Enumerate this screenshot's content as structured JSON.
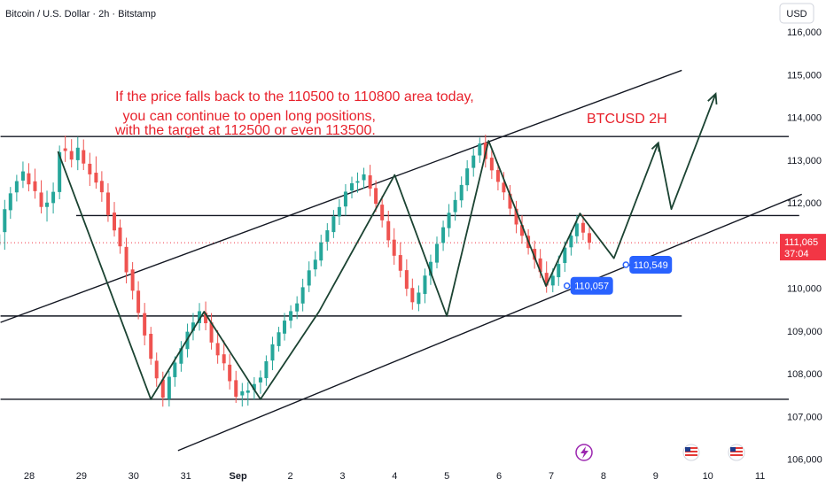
{
  "header": {
    "title": "Bitcoin / U.S. Dollar · 2h · Bitstamp",
    "currency_button": "USD"
  },
  "colors": {
    "up": "#26a69a",
    "down": "#ef5350",
    "annotation": "#e8212b",
    "tag_blue": "#2962ff",
    "last_price": "#f23645",
    "lines": "#131722"
  },
  "icons": [
    "lightning-icon",
    "us-flag-icon",
    "us-flag-icon"
  ],
  "chart_data": {
    "type": "candlestick",
    "title": "Bitcoin / U.S. Dollar · 2h · Bitstamp",
    "y_range": [
      105800,
      116400
    ],
    "y_ticks": [
      {
        "label": "116,000",
        "value": 116000
      },
      {
        "label": "115,000",
        "value": 115000
      },
      {
        "label": "114,000",
        "value": 114000
      },
      {
        "label": "113,000",
        "value": 113000
      },
      {
        "label": "112,000",
        "value": 112000
      },
      {
        "label": "110,000",
        "value": 110000
      },
      {
        "label": "109,000",
        "value": 109000
      },
      {
        "label": "108,000",
        "value": 108000
      },
      {
        "label": "107,000",
        "value": 107000
      },
      {
        "label": "106,000",
        "value": 106000
      }
    ],
    "x_ticks": [
      {
        "label": "28",
        "day": 28
      },
      {
        "label": "29",
        "day": 29
      },
      {
        "label": "30",
        "day": 30
      },
      {
        "label": "31",
        "day": 31
      },
      {
        "label": "Sep",
        "day": 32,
        "bold": true
      },
      {
        "label": "2",
        "day": 33
      },
      {
        "label": "3",
        "day": 34
      },
      {
        "label": "4",
        "day": 35
      },
      {
        "label": "5",
        "day": 36
      },
      {
        "label": "6",
        "day": 37
      },
      {
        "label": "7",
        "day": 38
      },
      {
        "label": "8",
        "day": 39
      },
      {
        "label": "9",
        "day": 40
      },
      {
        "label": "10",
        "day": 41
      },
      {
        "label": "11",
        "day": 42
      }
    ],
    "current_price": {
      "label": "111,065",
      "value": 111065,
      "countdown": "37:04"
    },
    "price_tags": [
      {
        "label": "110,057",
        "day": 38.3,
        "value": 110057
      },
      {
        "label": "110,549",
        "day": 39.43,
        "value": 110549
      }
    ],
    "annotation_lines": [
      "If the price falls back to the 110500 to 110800 area today,",
      " you can continue to open long positions,",
      "with the target at 112500 or even 113500."
    ],
    "label": "BTCUSD 2H",
    "horizontal_levels": [
      {
        "value": 113550,
        "from_day": 27.45,
        "to_day": 42.55
      },
      {
        "value": 111700,
        "from_day": 28.9,
        "to_day": 42.75
      },
      {
        "value": 109350,
        "from_day": 27.45,
        "to_day": 40.5
      },
      {
        "value": 107400,
        "from_day": 27.45,
        "to_day": 42.55
      }
    ],
    "trend_lines": [
      {
        "from": [
          27.45,
          109200
        ],
        "to": [
          40.5,
          115100
        ]
      },
      {
        "from": [
          30.85,
          106200
        ],
        "to": [
          42.8,
          112200
        ]
      }
    ],
    "zigzag": [
      [
        28.55,
        113200
      ],
      [
        30.33,
        107400
      ],
      [
        31.35,
        109450
      ],
      [
        32.43,
        107400
      ],
      [
        33.55,
        109450
      ],
      [
        35.0,
        112650
      ],
      [
        36.0,
        109350
      ],
      [
        36.8,
        113450
      ],
      [
        37.9,
        110050
      ],
      [
        38.55,
        111750
      ],
      [
        39.2,
        110700
      ],
      [
        40.05,
        113400
      ],
      [
        40.3,
        111850
      ],
      [
        41.15,
        114550
      ]
    ],
    "arrow_tip": [
      41.15,
      114550
    ],
    "candles": [
      {
        "t": 27.41,
        "o": 111004,
        "h": 111473,
        "l": 110530,
        "c": 111260
      },
      {
        "t": 27.53,
        "o": 111313,
        "h": 112068,
        "l": 110901,
        "c": 111850
      },
      {
        "t": 27.64,
        "o": 111826,
        "h": 112370,
        "l": 111624,
        "c": 112221
      },
      {
        "t": 27.76,
        "o": 112243,
        "h": 112654,
        "l": 112032,
        "c": 112507
      },
      {
        "t": 27.88,
        "o": 112519,
        "h": 112965,
        "l": 112346,
        "c": 112734
      },
      {
        "t": 27.99,
        "o": 112690,
        "h": 112926,
        "l": 112267,
        "c": 112431
      },
      {
        "t": 28.11,
        "o": 112502,
        "h": 112798,
        "l": 112095,
        "c": 112272
      },
      {
        "t": 28.23,
        "o": 112240,
        "h": 112527,
        "l": 111750,
        "c": 111902
      },
      {
        "t": 28.34,
        "o": 111902,
        "h": 112283,
        "l": 111560,
        "c": 112004
      },
      {
        "t": 28.46,
        "o": 111993,
        "h": 112474,
        "l": 111749,
        "c": 112256
      },
      {
        "t": 28.58,
        "o": 112251,
        "h": 113339,
        "l": 112082,
        "c": 113185
      },
      {
        "t": 28.69,
        "o": 113273,
        "h": 113571,
        "l": 112956,
        "c": 113213
      },
      {
        "t": 28.81,
        "o": 113210,
        "h": 113488,
        "l": 112827,
        "c": 113011
      },
      {
        "t": 28.93,
        "o": 112997,
        "h": 113542,
        "l": 112764,
        "c": 113289
      },
      {
        "t": 29.04,
        "o": 113232,
        "h": 113482,
        "l": 112766,
        "c": 112918
      },
      {
        "t": 29.16,
        "o": 112913,
        "h": 113170,
        "l": 112393,
        "c": 112665
      },
      {
        "t": 29.28,
        "o": 112704,
        "h": 113087,
        "l": 112330,
        "c": 112473
      },
      {
        "t": 29.39,
        "o": 112512,
        "h": 112739,
        "l": 112023,
        "c": 112246
      },
      {
        "t": 29.51,
        "o": 112239,
        "h": 112456,
        "l": 111553,
        "c": 111714
      },
      {
        "t": 29.63,
        "o": 111770,
        "h": 112019,
        "l": 111209,
        "c": 111353
      },
      {
        "t": 29.74,
        "o": 111421,
        "h": 111611,
        "l": 110806,
        "c": 110980
      },
      {
        "t": 29.86,
        "o": 110967,
        "h": 111182,
        "l": 110113,
        "c": 110373
      },
      {
        "t": 29.98,
        "o": 110439,
        "h": 110611,
        "l": 109735,
        "c": 109941
      },
      {
        "t": 30.09,
        "o": 109942,
        "h": 110164,
        "l": 109272,
        "c": 109422
      },
      {
        "t": 30.21,
        "o": 109416,
        "h": 109656,
        "l": 108663,
        "c": 108894
      },
      {
        "t": 30.33,
        "o": 108933,
        "h": 109096,
        "l": 108210,
        "c": 108348
      },
      {
        "t": 30.44,
        "o": 108302,
        "h": 108494,
        "l": 107694,
        "c": 107891
      },
      {
        "t": 30.56,
        "o": 107863,
        "h": 108046,
        "l": 107228,
        "c": 107440
      },
      {
        "t": 30.68,
        "o": 107406,
        "h": 108064,
        "l": 107231,
        "c": 107927
      },
      {
        "t": 30.79,
        "o": 107918,
        "h": 108405,
        "l": 107694,
        "c": 108259
      },
      {
        "t": 30.91,
        "o": 108233,
        "h": 108763,
        "l": 108045,
        "c": 108597
      },
      {
        "t": 31.03,
        "o": 108575,
        "h": 109171,
        "l": 108381,
        "c": 108982
      },
      {
        "t": 31.14,
        "o": 109001,
        "h": 109419,
        "l": 108781,
        "c": 109198
      },
      {
        "t": 31.26,
        "o": 109183,
        "h": 109653,
        "l": 109007,
        "c": 109462
      },
      {
        "t": 31.38,
        "o": 109424,
        "h": 109688,
        "l": 109016,
        "c": 109181
      },
      {
        "t": 31.49,
        "o": 109199,
        "h": 109418,
        "l": 108564,
        "c": 108729
      },
      {
        "t": 31.61,
        "o": 108716,
        "h": 109017,
        "l": 108233,
        "c": 108429
      },
      {
        "t": 31.73,
        "o": 108453,
        "h": 108778,
        "l": 108075,
        "c": 108242
      },
      {
        "t": 31.84,
        "o": 108210,
        "h": 108462,
        "l": 107630,
        "c": 107824
      },
      {
        "t": 31.96,
        "o": 107847,
        "h": 108066,
        "l": 107316,
        "c": 107461
      },
      {
        "t": 32.08,
        "o": 107491,
        "h": 107783,
        "l": 107230,
        "c": 107587
      },
      {
        "t": 32.19,
        "o": 107552,
        "h": 107803,
        "l": 107251,
        "c": 107607
      },
      {
        "t": 32.31,
        "o": 107618,
        "h": 107919,
        "l": 107397,
        "c": 107757
      },
      {
        "t": 32.43,
        "o": 107795,
        "h": 108074,
        "l": 107529,
        "c": 107909
      },
      {
        "t": 32.54,
        "o": 107895,
        "h": 108427,
        "l": 107715,
        "c": 108290
      },
      {
        "t": 32.66,
        "o": 108307,
        "h": 108864,
        "l": 108082,
        "c": 108687
      },
      {
        "t": 32.78,
        "o": 108645,
        "h": 109097,
        "l": 108516,
        "c": 108969
      },
      {
        "t": 32.89,
        "o": 108937,
        "h": 109421,
        "l": 108775,
        "c": 109242
      },
      {
        "t": 33.01,
        "o": 109241,
        "h": 109601,
        "l": 109064,
        "c": 109463
      },
      {
        "t": 33.13,
        "o": 109456,
        "h": 109812,
        "l": 109278,
        "c": 109645
      },
      {
        "t": 33.24,
        "o": 109642,
        "h": 110221,
        "l": 109458,
        "c": 110023
      },
      {
        "t": 33.36,
        "o": 110063,
        "h": 110628,
        "l": 109909,
        "c": 110418
      },
      {
        "t": 33.48,
        "o": 110441,
        "h": 110866,
        "l": 110273,
        "c": 110667
      },
      {
        "t": 33.59,
        "o": 110648,
        "h": 111252,
        "l": 110514,
        "c": 111073
      },
      {
        "t": 33.71,
        "o": 111089,
        "h": 111522,
        "l": 110881,
        "c": 111356
      },
      {
        "t": 33.83,
        "o": 111314,
        "h": 111831,
        "l": 111174,
        "c": 111684
      },
      {
        "t": 33.94,
        "o": 111678,
        "h": 112083,
        "l": 111481,
        "c": 111900
      },
      {
        "t": 34.06,
        "o": 111913,
        "h": 112436,
        "l": 111699,
        "c": 112260
      },
      {
        "t": 34.18,
        "o": 112287,
        "h": 112610,
        "l": 112103,
        "c": 112457
      },
      {
        "t": 34.29,
        "o": 112468,
        "h": 112709,
        "l": 112235,
        "c": 112507
      },
      {
        "t": 34.41,
        "o": 112529,
        "h": 112819,
        "l": 112329,
        "c": 112665
      },
      {
        "t": 34.53,
        "o": 112642,
        "h": 112889,
        "l": 112153,
        "c": 112331
      },
      {
        "t": 34.64,
        "o": 112344,
        "h": 112523,
        "l": 111786,
        "c": 111976
      },
      {
        "t": 34.76,
        "o": 111956,
        "h": 112163,
        "l": 111422,
        "c": 111589
      },
      {
        "t": 34.88,
        "o": 111570,
        "h": 111814,
        "l": 110956,
        "c": 111122
      },
      {
        "t": 34.99,
        "o": 111136,
        "h": 111405,
        "l": 110549,
        "c": 110760
      },
      {
        "t": 35.11,
        "o": 110776,
        "h": 111075,
        "l": 110254,
        "c": 110409
      },
      {
        "t": 35.23,
        "o": 110423,
        "h": 110677,
        "l": 109816,
        "c": 109987
      },
      {
        "t": 35.34,
        "o": 110005,
        "h": 110225,
        "l": 109498,
        "c": 109672
      },
      {
        "t": 35.46,
        "o": 109632,
        "h": 110064,
        "l": 109463,
        "c": 109897
      },
      {
        "t": 35.58,
        "o": 109866,
        "h": 110460,
        "l": 109649,
        "c": 110296
      },
      {
        "t": 35.69,
        "o": 110294,
        "h": 110786,
        "l": 110077,
        "c": 110617
      },
      {
        "t": 35.81,
        "o": 110599,
        "h": 111209,
        "l": 110465,
        "c": 111038
      },
      {
        "t": 35.93,
        "o": 111060,
        "h": 111582,
        "l": 110873,
        "c": 111427
      },
      {
        "t": 36.04,
        "o": 111406,
        "h": 111970,
        "l": 111200,
        "c": 111765
      },
      {
        "t": 36.16,
        "o": 111781,
        "h": 112257,
        "l": 111581,
        "c": 112065
      },
      {
        "t": 36.28,
        "o": 112057,
        "h": 112616,
        "l": 111887,
        "c": 112417
      },
      {
        "t": 36.39,
        "o": 112411,
        "h": 112995,
        "l": 112273,
        "c": 112805
      },
      {
        "t": 36.51,
        "o": 112817,
        "h": 113274,
        "l": 112611,
        "c": 113105
      },
      {
        "t": 36.63,
        "o": 113109,
        "h": 113526,
        "l": 112935,
        "c": 113387
      },
      {
        "t": 36.74,
        "o": 113409,
        "h": 113592,
        "l": 112825,
        "c": 113024
      },
      {
        "t": 36.86,
        "o": 113055,
        "h": 113248,
        "l": 112557,
        "c": 112759
      },
      {
        "t": 36.98,
        "o": 112766,
        "h": 112933,
        "l": 112290,
        "c": 112489
      },
      {
        "t": 37.09,
        "o": 112469,
        "h": 112720,
        "l": 112064,
        "c": 112244
      },
      {
        "t": 37.21,
        "o": 112212,
        "h": 112415,
        "l": 111707,
        "c": 111863
      },
      {
        "t": 37.33,
        "o": 111860,
        "h": 112044,
        "l": 111287,
        "c": 111492
      },
      {
        "t": 37.44,
        "o": 111477,
        "h": 111707,
        "l": 111042,
        "c": 111227
      },
      {
        "t": 37.56,
        "o": 111226,
        "h": 111381,
        "l": 110788,
        "c": 110940
      },
      {
        "t": 37.68,
        "o": 110922,
        "h": 111114,
        "l": 110456,
        "c": 110667
      },
      {
        "t": 37.79,
        "o": 110697,
        "h": 110917,
        "l": 110235,
        "c": 110377
      },
      {
        "t": 37.91,
        "o": 110360,
        "h": 110627,
        "l": 109894,
        "c": 110063
      },
      {
        "t": 38.03,
        "o": 110065,
        "h": 110464,
        "l": 109906,
        "c": 110291
      },
      {
        "t": 38.14,
        "o": 110258,
        "h": 110764,
        "l": 110054,
        "c": 110568
      },
      {
        "t": 38.26,
        "o": 110590,
        "h": 111094,
        "l": 110383,
        "c": 110950
      },
      {
        "t": 38.38,
        "o": 110957,
        "h": 111361,
        "l": 110764,
        "c": 111232
      },
      {
        "t": 38.49,
        "o": 111216,
        "h": 111707,
        "l": 111049,
        "c": 111515
      },
      {
        "t": 38.61,
        "o": 111529,
        "h": 111720,
        "l": 111127,
        "c": 111301
      },
      {
        "t": 38.73,
        "o": 111289,
        "h": 111457,
        "l": 110907,
        "c": 111065
      }
    ]
  }
}
